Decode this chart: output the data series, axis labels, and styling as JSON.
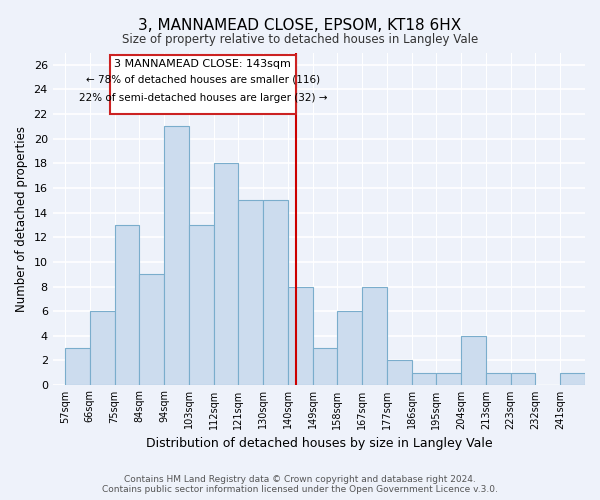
{
  "title": "3, MANNAMEAD CLOSE, EPSOM, KT18 6HX",
  "subtitle": "Size of property relative to detached houses in Langley Vale",
  "xlabel": "Distribution of detached houses by size in Langley Vale",
  "ylabel": "Number of detached properties",
  "bin_edges": [
    57,
    66,
    75,
    84,
    94,
    103,
    112,
    121,
    130,
    140,
    149,
    158,
    167,
    177,
    186,
    195,
    204,
    213,
    223,
    232,
    241
  ],
  "bin_labels": [
    "57sqm",
    "66sqm",
    "75sqm",
    "84sqm",
    "94sqm",
    "103sqm",
    "112sqm",
    "121sqm",
    "130sqm",
    "140sqm",
    "149sqm",
    "158sqm",
    "167sqm",
    "177sqm",
    "186sqm",
    "195sqm",
    "204sqm",
    "213sqm",
    "223sqm",
    "232sqm",
    "241sqm"
  ],
  "bar_values": [
    3,
    6,
    13,
    9,
    21,
    13,
    18,
    15,
    15,
    8,
    3,
    6,
    8,
    2,
    1,
    1,
    4,
    1,
    1,
    0,
    1
  ],
  "bar_color": "#ccdcee",
  "bar_edge_color": "#7aadcc",
  "property_label": "3 MANNAMEAD CLOSE: 143sqm",
  "annotation_line1": "← 78% of detached houses are smaller (116)",
  "annotation_line2": "22% of semi-detached houses are larger (32) →",
  "vline_color": "#cc0000",
  "vline_x": 143,
  "ylim": [
    0,
    27
  ],
  "yticks": [
    0,
    2,
    4,
    6,
    8,
    10,
    12,
    14,
    16,
    18,
    20,
    22,
    24,
    26
  ],
  "background_color": "#eef2fa",
  "grid_color": "#ffffff",
  "annotation_box_color": "#ffffff",
  "annotation_box_edge": "#cc2222",
  "footer_line1": "Contains HM Land Registry data © Crown copyright and database right 2024.",
  "footer_line2": "Contains public sector information licensed under the Open Government Licence v.3.0."
}
